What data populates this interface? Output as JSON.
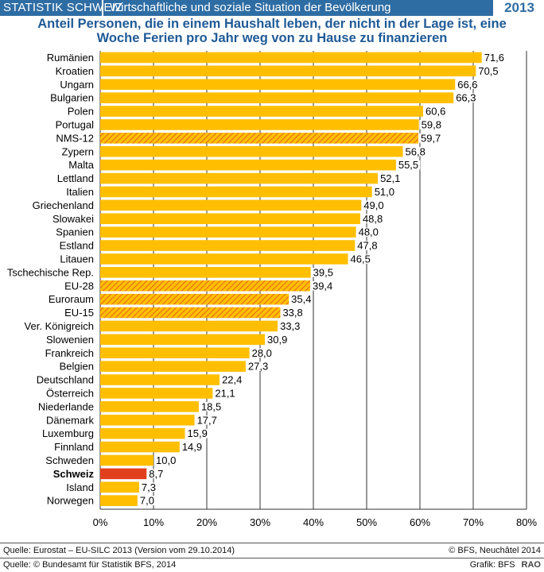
{
  "header": {
    "brand": "STATISTIK SCHWEIZ",
    "subtitle": "Wirtschaftliche und soziale Situation der Bevölkerung",
    "year": "2013"
  },
  "title_line1": "Anteil Personen, die in einem Haushalt leben, der nicht in der Lage ist, eine",
  "title_line2": "Woche Ferien pro Jahr weg von zu Hause zu finanzieren",
  "footer": {
    "source": "Quelle: Eurostat – EU-SILC 2013 (Version vom 29.10.2014)",
    "copyright": "© BFS, Neuchâtel 2014",
    "copyright_line": "Quelle: © Bundesamt für Statistik BFS, 2014",
    "graphic": "Grafik: BFS",
    "code": "RAO"
  },
  "colors": {
    "bar": "#ffbf00",
    "hatch": "#e8641e",
    "highlight": "#e2401c",
    "header": "#2e6da4",
    "title": "#1f5a96"
  },
  "chart_data": {
    "type": "bar",
    "orientation": "horizontal",
    "xlim": [
      0,
      80
    ],
    "xticks": [
      "0%",
      "10%",
      "20%",
      "30%",
      "40%",
      "50%",
      "60%",
      "70%",
      "80%"
    ],
    "grid": true,
    "categories": [
      "Rumänien",
      "Kroatien",
      "Ungarn",
      "Bulgarien",
      "Polen",
      "Portugal",
      "NMS-12",
      "Zypern",
      "Malta",
      "Lettland",
      "Italien",
      "Griechenland",
      "Slowakei",
      "Spanien",
      "Estland",
      "Litauen",
      "Tschechische Rep.",
      "EU-28",
      "Euroraum",
      "EU-15",
      "Ver. Königreich",
      "Slowenien",
      "Frankreich",
      "Belgien",
      "Deutschland",
      "Österreich",
      "Niederlande",
      "Dänemark",
      "Luxemburg",
      "Finnland",
      "Schweden",
      "Schweiz",
      "Island",
      "Norwegen"
    ],
    "values": [
      71.6,
      70.5,
      66.6,
      66.3,
      60.6,
      59.8,
      59.7,
      56.8,
      55.5,
      52.1,
      51.0,
      49.0,
      48.8,
      48.0,
      47.8,
      46.5,
      39.5,
      39.4,
      35.4,
      33.8,
      33.3,
      30.9,
      28.0,
      27.3,
      22.4,
      21.1,
      18.5,
      17.7,
      15.9,
      14.9,
      10.0,
      8.7,
      7.3,
      7.0
    ],
    "value_labels": [
      "71,6",
      "70,5",
      "66,6",
      "66,3",
      "60,6",
      "59,8",
      "59,7",
      "56,8",
      "55,5",
      "52,1",
      "51,0",
      "49,0",
      "48,8",
      "48,0",
      "47,8",
      "46,5",
      "39,5",
      "39,4",
      "35,4",
      "33,8",
      "33,3",
      "30,9",
      "28,0",
      "27,3",
      "22,4",
      "21,1",
      "18,5",
      "17,7",
      "15,9",
      "14,9",
      "10,0",
      "8,7",
      "7,3",
      "7,0"
    ],
    "styles": [
      "solid",
      "solid",
      "solid",
      "solid",
      "solid",
      "solid",
      "hatched",
      "solid",
      "solid",
      "solid",
      "solid",
      "solid",
      "solid",
      "solid",
      "solid",
      "solid",
      "solid",
      "hatched",
      "hatched",
      "hatched",
      "solid",
      "solid",
      "solid",
      "solid",
      "solid",
      "solid",
      "solid",
      "solid",
      "solid",
      "solid",
      "solid",
      "highlight",
      "solid",
      "solid"
    ]
  }
}
